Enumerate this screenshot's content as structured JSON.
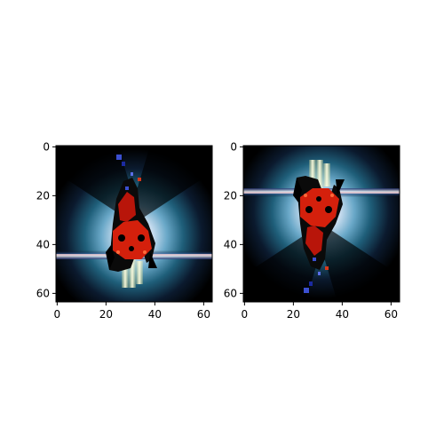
{
  "chart_data": [
    {
      "type": "heatmap",
      "title": "",
      "xlabel": "",
      "ylabel": "",
      "xlim": [
        -0.5,
        63.5
      ],
      "ylim": [
        63.5,
        -0.5
      ],
      "xticks": [
        0,
        20,
        40,
        60
      ],
      "yticks": [
        0,
        20,
        40,
        60
      ],
      "orientation": "original",
      "content": "stylized red-black cat figure with white-blue-cyan radial glow on black background, horizontal streak near y=44, yellow flame below"
    },
    {
      "type": "heatmap",
      "title": "",
      "xlabel": "",
      "ylabel": "",
      "xlim": [
        -0.5,
        63.5
      ],
      "ylim": [
        63.5,
        -0.5
      ],
      "xticks": [
        0,
        20,
        40,
        60
      ],
      "yticks": [
        0,
        20,
        40,
        60
      ],
      "orientation": "vertically flipped",
      "content": "same image flipped top-to-bottom; horizontal streak near y=19, yellow flame above"
    }
  ]
}
